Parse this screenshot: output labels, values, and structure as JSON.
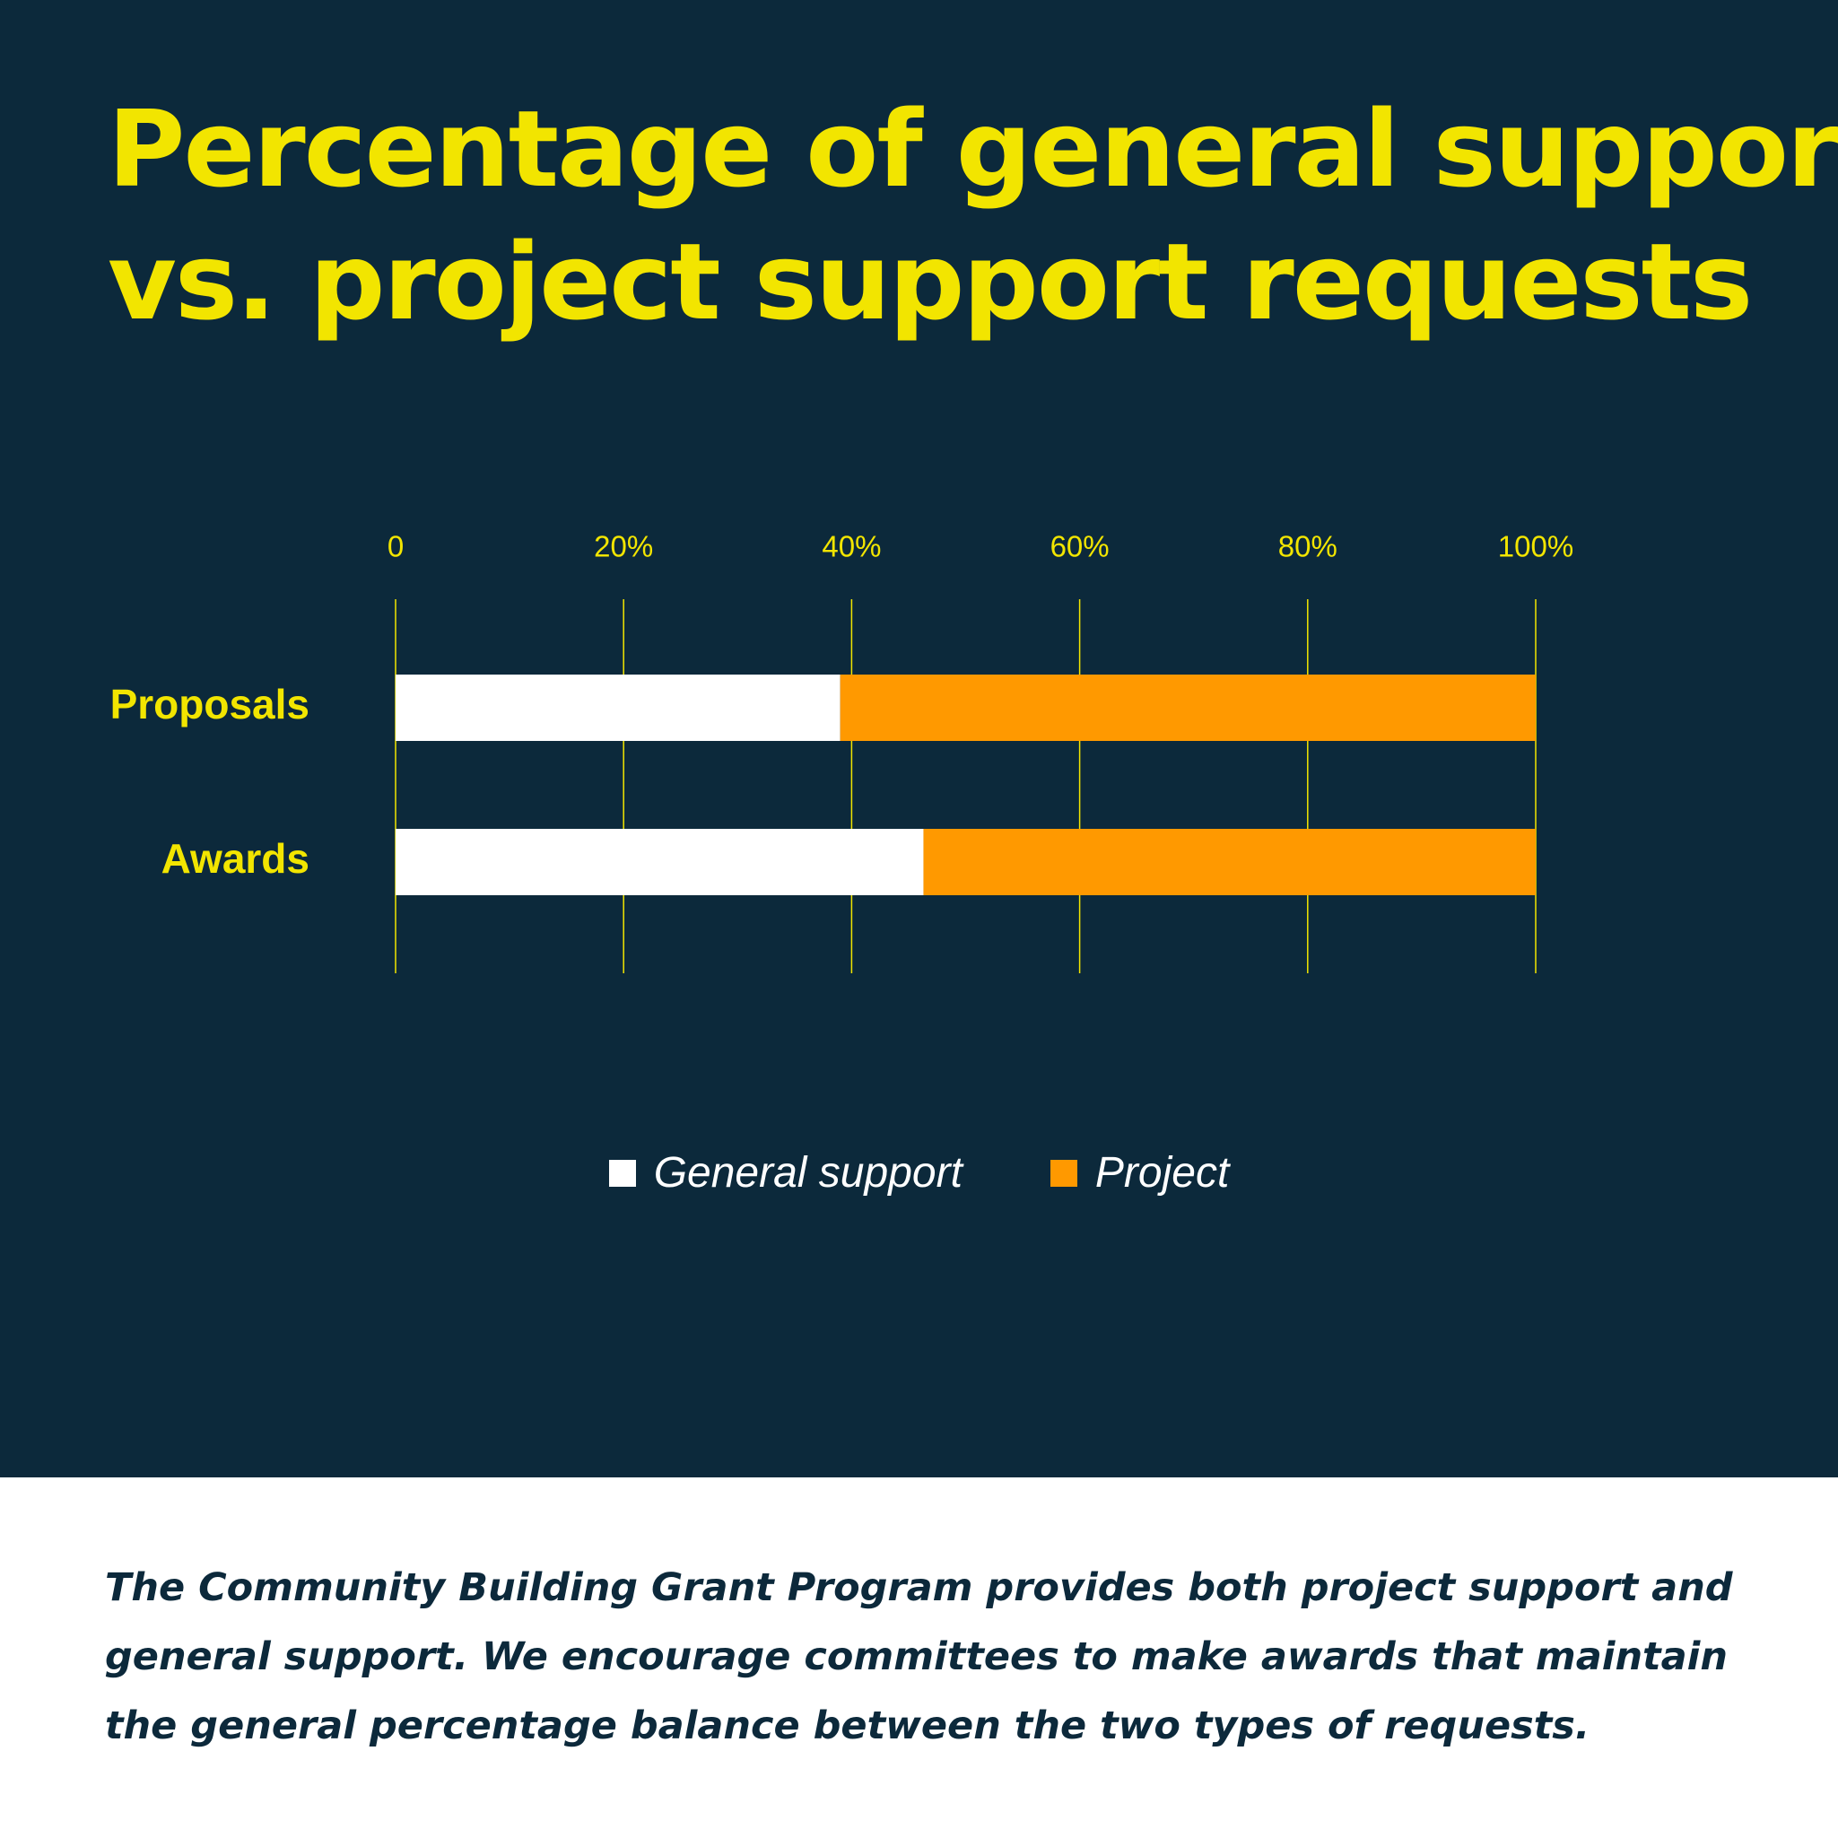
{
  "colors": {
    "panel_background": "#0c293b",
    "accent_yellow": "#f2e500",
    "general_support": "#ffffff",
    "project": "#ff9900",
    "caption_text": "#0c293b"
  },
  "title_lines": [
    "Percentage of general support",
    "vs. project support requests"
  ],
  "chart_data": {
    "type": "bar",
    "orientation": "horizontal",
    "stacked": true,
    "categories": [
      "Proposals",
      "Awards"
    ],
    "series": [
      {
        "name": "General support",
        "values": [
          39,
          46.3
        ]
      },
      {
        "name": "Project",
        "values": [
          61,
          53.7
        ]
      }
    ],
    "xlim": [
      0,
      100
    ],
    "x_ticks": [
      0,
      20,
      40,
      60,
      80,
      100
    ],
    "x_tick_labels": [
      "0",
      "20%",
      "40%",
      "60%",
      "80%",
      "100%"
    ],
    "grid": true,
    "legend_position": "bottom-center"
  },
  "caption_lines": [
    "The Community Building Grant Program provides both project support and",
    "general support. We encourage committees to make awards that maintain",
    "the general percentage balance between the two types of requests."
  ]
}
